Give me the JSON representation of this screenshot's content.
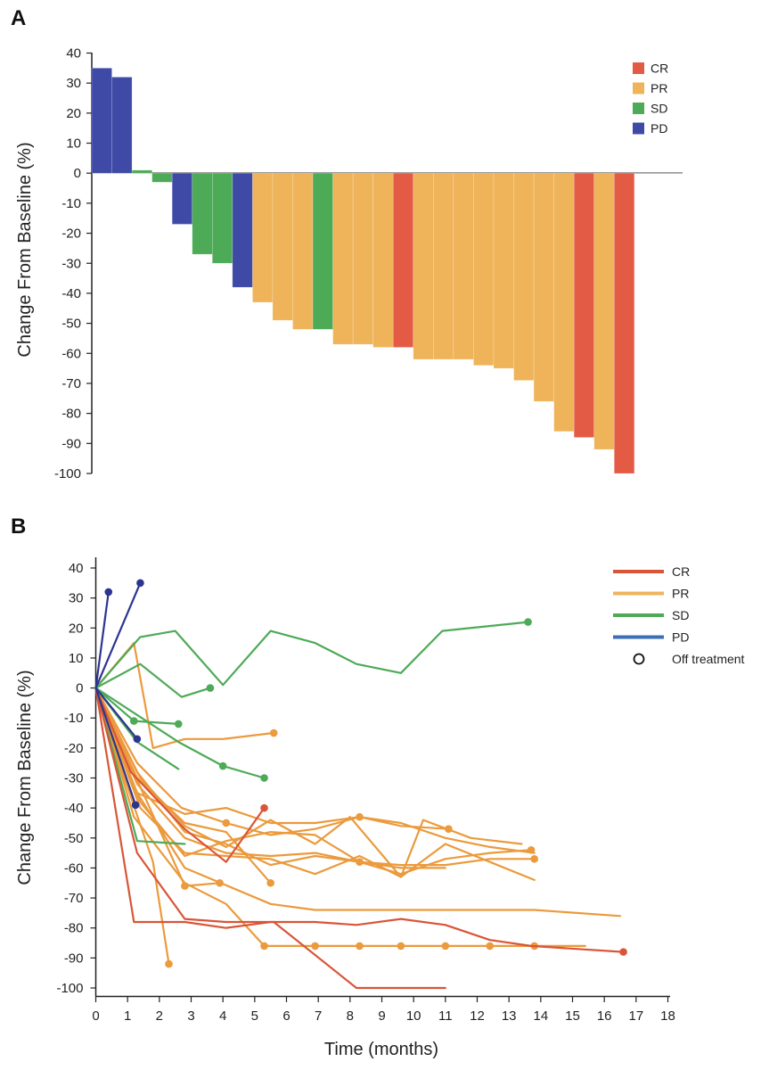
{
  "panels": {
    "a": {
      "letter": "A"
    },
    "b": {
      "letter": "B"
    }
  },
  "colors": {
    "CR": "#e35b45",
    "PR": "#efb45a",
    "SD": "#4daa57",
    "PD": "#3e4aa6",
    "line_CR": "#d95538",
    "line_PR": "#eb9a3c",
    "line_SD": "#4daa57",
    "line_PD": "#2c3590",
    "legend_PD": "#3a6fb8"
  },
  "chart_data": [
    {
      "type": "bar",
      "panel": "A",
      "title": "",
      "xlabel": "",
      "ylabel": "Change From Baseline (%)",
      "ylim": [
        -100,
        40
      ],
      "yticks": [
        40,
        30,
        20,
        10,
        0,
        -10,
        -20,
        -30,
        -40,
        -50,
        -60,
        -70,
        -80,
        -90,
        -100
      ],
      "legend": {
        "placement": "top-right",
        "entries": [
          "CR",
          "PR",
          "SD",
          "PD"
        ]
      },
      "bars": [
        {
          "response": "PD",
          "value": 35
        },
        {
          "response": "PD",
          "value": 32
        },
        {
          "response": "SD",
          "value": 1
        },
        {
          "response": "SD",
          "value": -3
        },
        {
          "response": "PD",
          "value": -17
        },
        {
          "response": "SD",
          "value": -27
        },
        {
          "response": "SD",
          "value": -30
        },
        {
          "response": "PD",
          "value": -38
        },
        {
          "response": "PR",
          "value": -43
        },
        {
          "response": "PR",
          "value": -49
        },
        {
          "response": "PR",
          "value": -52
        },
        {
          "response": "SD",
          "value": -52
        },
        {
          "response": "PR",
          "value": -57
        },
        {
          "response": "PR",
          "value": -57
        },
        {
          "response": "PR",
          "value": -58
        },
        {
          "response": "CR",
          "value": -58
        },
        {
          "response": "PR",
          "value": -62
        },
        {
          "response": "PR",
          "value": -62
        },
        {
          "response": "PR",
          "value": -62
        },
        {
          "response": "PR",
          "value": -64
        },
        {
          "response": "PR",
          "value": -65
        },
        {
          "response": "PR",
          "value": -69
        },
        {
          "response": "PR",
          "value": -76
        },
        {
          "response": "PR",
          "value": -86
        },
        {
          "response": "CR",
          "value": -88
        },
        {
          "response": "PR",
          "value": -92
        },
        {
          "response": "CR",
          "value": -100
        }
      ]
    },
    {
      "type": "line",
      "panel": "B",
      "title": "",
      "xlabel": "Time (months)",
      "ylabel": "Change From Baseline (%)",
      "xlim": [
        0,
        18
      ],
      "ylim": [
        -100,
        40
      ],
      "xticks": [
        0,
        1,
        2,
        3,
        4,
        5,
        6,
        7,
        8,
        9,
        10,
        11,
        12,
        13,
        14,
        15,
        16,
        17,
        18
      ],
      "yticks": [
        40,
        30,
        20,
        10,
        0,
        -10,
        -20,
        -30,
        -40,
        -50,
        -60,
        -70,
        -80,
        -90,
        -100
      ],
      "legend": {
        "placement": "top-right",
        "entries": [
          "CR",
          "PR",
          "SD",
          "PD",
          "Off treatment"
        ]
      },
      "series": [
        {
          "response": "PD",
          "x": [
            0,
            0.4
          ],
          "y": [
            0,
            32
          ],
          "off": [
            1
          ]
        },
        {
          "response": "PD",
          "x": [
            0,
            1.4
          ],
          "y": [
            0,
            35
          ],
          "off": [
            1
          ]
        },
        {
          "response": "PD",
          "x": [
            0,
            1.3
          ],
          "y": [
            0,
            -17
          ],
          "off": [
            1
          ]
        },
        {
          "response": "PD",
          "x": [
            0,
            1.25
          ],
          "y": [
            0,
            -39
          ],
          "off": [
            1
          ]
        },
        {
          "response": "SD",
          "x": [
            0,
            1.4,
            2.5,
            4.0,
            5.5,
            6.9,
            8.2,
            9.6,
            10.9,
            13.6
          ],
          "y": [
            0,
            17,
            19,
            1,
            19,
            15,
            8,
            5,
            19,
            22
          ],
          "off": [
            9
          ]
        },
        {
          "response": "SD",
          "x": [
            0,
            1.4,
            2.7,
            3.6
          ],
          "y": [
            0,
            8,
            -3,
            0
          ],
          "off": [
            3
          ]
        },
        {
          "response": "SD",
          "x": [
            0,
            1.2,
            2.6
          ],
          "y": [
            0,
            -11,
            -12
          ],
          "off": [
            1,
            2
          ]
        },
        {
          "response": "SD",
          "x": [
            0,
            1.3,
            2.6
          ],
          "y": [
            0,
            -18,
            -27
          ],
          "off": []
        },
        {
          "response": "SD",
          "x": [
            0,
            2.6,
            4.0,
            5.3
          ],
          "y": [
            0,
            -18,
            -26,
            -30
          ],
          "off": [
            2,
            3
          ]
        },
        {
          "response": "SD",
          "x": [
            0,
            1.3,
            2.8
          ],
          "y": [
            0,
            -51,
            -52
          ],
          "off": []
        },
        {
          "response": "CR",
          "x": [
            0,
            1.2,
            2.8,
            4.1,
            5.5,
            6.9,
            8.2,
            9.6,
            11.0,
            12.4,
            13.7,
            16.6
          ],
          "y": [
            0,
            -78,
            -78,
            -80,
            -78,
            -78,
            -79,
            -77,
            -79,
            -84,
            -86,
            -88
          ],
          "off": [
            11
          ]
        },
        {
          "response": "CR",
          "x": [
            0,
            1.1,
            2.8,
            4.1,
            5.3
          ],
          "y": [
            0,
            -28,
            -47,
            -58,
            -40
          ],
          "off": [
            4
          ]
        },
        {
          "response": "CR",
          "x": [
            0,
            1.3,
            2.8,
            4.1,
            5.6,
            8.2,
            11.0
          ],
          "y": [
            0,
            -55,
            -77,
            -78,
            -78,
            -100,
            -100
          ],
          "off": []
        },
        {
          "response": "PR",
          "x": [
            0,
            1.2,
            2.8,
            4.1,
            5.3,
            6.9,
            8.3,
            9.6,
            11.0,
            12.4,
            13.8,
            15.4
          ],
          "y": [
            0,
            -43,
            -65,
            -72,
            -86,
            -86,
            -86,
            -86,
            -86,
            -86,
            -86,
            -86
          ],
          "off": [
            4,
            5,
            6,
            7,
            8,
            9,
            10
          ]
        },
        {
          "response": "PR",
          "x": [
            0,
            1.3,
            2.8,
            5.5,
            6.9,
            9.6,
            11.0,
            13.8,
            16.5
          ],
          "y": [
            0,
            -35,
            -60,
            -72,
            -74,
            -74,
            -74,
            -74,
            -76
          ],
          "off": []
        },
        {
          "response": "PR",
          "x": [
            0,
            0.9,
            1.8,
            2.3
          ],
          "y": [
            0,
            -30,
            -58,
            -92
          ],
          "off": [
            3
          ]
        },
        {
          "response": "PR",
          "x": [
            0,
            1.7,
            2.8,
            3.9
          ],
          "y": [
            0,
            -40,
            -66,
            -65
          ],
          "off": [
            2,
            3
          ]
        },
        {
          "response": "PR",
          "x": [
            0,
            1.2,
            1.8,
            2.8,
            4.0,
            5.6
          ],
          "y": [
            0,
            15,
            -20,
            -17,
            -17,
            -15
          ],
          "off": [
            5
          ]
        },
        {
          "response": "PR",
          "x": [
            0,
            1.3,
            2.8,
            4.1,
            5.5
          ],
          "y": [
            0,
            -30,
            -45,
            -48,
            -65
          ],
          "off": [
            4
          ]
        },
        {
          "response": "PR",
          "x": [
            0,
            1.3,
            2.7,
            4.1,
            5.5,
            6.9,
            8.3,
            9.6,
            11.1
          ],
          "y": [
            0,
            -25,
            -40,
            -45,
            -49,
            -47,
            -43,
            -46,
            -47
          ],
          "off": [
            3,
            6,
            8
          ]
        },
        {
          "response": "PR",
          "x": [
            0,
            1.3,
            2.8,
            4.1,
            5.5,
            6.9,
            8.3,
            9.6,
            11.0,
            12.4,
            13.7
          ],
          "y": [
            0,
            -32,
            -50,
            -55,
            -56,
            -55,
            -58,
            -62,
            -57,
            -55,
            -54
          ],
          "off": [
            6,
            10
          ]
        },
        {
          "response": "PR",
          "x": [
            0,
            1.4,
            2.8,
            4.1,
            5.5,
            6.9,
            8.3,
            9.6,
            11.0,
            12.4,
            13.8
          ],
          "y": [
            0,
            -38,
            -56,
            -51,
            -48,
            -49,
            -58,
            -59,
            -59,
            -57,
            -57
          ],
          "off": [
            10
          ]
        },
        {
          "response": "PR",
          "x": [
            0,
            1.3,
            2.8,
            4.1,
            5.5,
            6.9,
            8.3,
            9.6,
            11.0,
            12.4,
            13.8
          ],
          "y": [
            0,
            -35,
            -42,
            -40,
            -45,
            -45,
            -43,
            -45,
            -50,
            -53,
            -55
          ],
          "off": []
        },
        {
          "response": "PR",
          "x": [
            0,
            1.4,
            2.8,
            4.1,
            5.5,
            6.9,
            8.0,
            9.6,
            10.3,
            11.8,
            13.4
          ],
          "y": [
            0,
            -30,
            -46,
            -53,
            -44,
            -52,
            -43,
            -63,
            -44,
            -50,
            -52
          ],
          "off": []
        },
        {
          "response": "PR",
          "x": [
            0,
            1.4,
            2.8,
            4.1,
            5.5,
            6.9,
            8.3,
            9.6,
            11.0,
            12.4,
            13.8
          ],
          "y": [
            0,
            -40,
            -55,
            -56,
            -57,
            -62,
            -56,
            -63,
            -52,
            -58,
            -64
          ],
          "off": []
        },
        {
          "response": "PR",
          "x": [
            0,
            1.3,
            2.8,
            4.1,
            5.5,
            6.9,
            8.3,
            9.6,
            11.0
          ],
          "y": [
            0,
            -28,
            -48,
            -52,
            -59,
            -56,
            -58,
            -60,
            -60
          ],
          "off": []
        }
      ]
    }
  ]
}
